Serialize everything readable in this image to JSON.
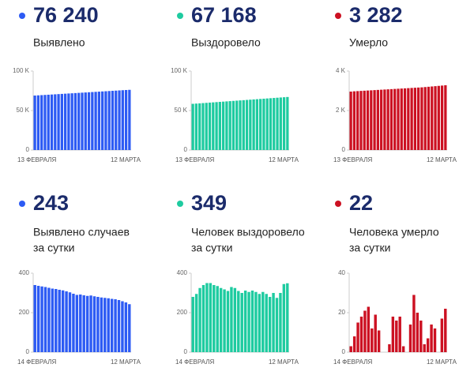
{
  "chart_data": [
    {
      "type": "bar",
      "title": "76 240",
      "label": [
        "Выявлено"
      ],
      "color": "#2d5bf4",
      "categories": [
        "13 ФЕВРАЛЯ",
        null,
        null,
        null,
        null,
        null,
        null,
        null,
        null,
        null,
        null,
        null,
        null,
        null,
        null,
        null,
        null,
        null,
        null,
        null,
        null,
        null,
        null,
        null,
        null,
        null,
        null,
        null,
        "12 МАРТА"
      ],
      "values": [
        69000,
        69260,
        69520,
        69780,
        70040,
        70300,
        70560,
        70820,
        71080,
        71340,
        71600,
        71860,
        72120,
        72380,
        72640,
        72900,
        73160,
        73420,
        73680,
        73940,
        74200,
        74460,
        74720,
        74980,
        75240,
        75500,
        75760,
        76000,
        76240
      ],
      "ylim": [
        0,
        100000
      ],
      "yticks": [
        0,
        {
          "value": 50000,
          "label": "50 K"
        },
        {
          "value": 100000,
          "label": "100 K"
        }
      ]
    },
    {
      "type": "bar",
      "title": "67 168",
      "label": [
        "Выздоровело"
      ],
      "color": "#1ecba0",
      "categories": [
        "13 ФЕВРАЛЯ",
        null,
        null,
        null,
        null,
        null,
        null,
        null,
        null,
        null,
        null,
        null,
        null,
        null,
        null,
        null,
        null,
        null,
        null,
        null,
        null,
        null,
        null,
        null,
        null,
        null,
        null,
        null,
        "12 МАРТА"
      ],
      "values": [
        58500,
        58810,
        59120,
        59430,
        59740,
        60050,
        60360,
        60670,
        60980,
        61290,
        61600,
        61910,
        62220,
        62530,
        62840,
        63150,
        63460,
        63770,
        64080,
        64390,
        64700,
        65010,
        65320,
        65630,
        65940,
        66250,
        66560,
        66860,
        67168
      ],
      "ylim": [
        0,
        100000
      ],
      "yticks": [
        0,
        {
          "value": 50000,
          "label": "50 K"
        },
        {
          "value": 100000,
          "label": "100 K"
        }
      ]
    },
    {
      "type": "bar",
      "title": "3 282",
      "label": [
        "Умерло"
      ],
      "color": "#cc1122",
      "categories": [
        "13 ФЕВРАЛЯ",
        null,
        null,
        null,
        null,
        null,
        null,
        null,
        null,
        null,
        null,
        null,
        null,
        null,
        null,
        null,
        null,
        null,
        null,
        null,
        null,
        null,
        null,
        null,
        null,
        null,
        null,
        null,
        "12 МАРТА"
      ],
      "values": [
        2960,
        2975,
        2985,
        2995,
        3005,
        3015,
        3025,
        3035,
        3045,
        3055,
        3065,
        3075,
        3085,
        3095,
        3105,
        3115,
        3125,
        3135,
        3145,
        3155,
        3165,
        3175,
        3190,
        3205,
        3220,
        3235,
        3250,
        3265,
        3282
      ],
      "ylim": [
        0,
        4000
      ],
      "yticks": [
        0,
        {
          "value": 2000,
          "label": "2 K"
        },
        {
          "value": 4000,
          "label": "4 K"
        }
      ]
    },
    {
      "type": "bar",
      "title": "243",
      "label": [
        "Выявлено случаев",
        "за сутки"
      ],
      "color": "#2d5bf4",
      "categories": [
        "14 ФЕВРАЛЯ",
        null,
        null,
        null,
        null,
        null,
        null,
        null,
        null,
        null,
        null,
        null,
        null,
        null,
        null,
        null,
        null,
        null,
        null,
        null,
        null,
        null,
        null,
        null,
        null,
        null,
        null,
        "12 МАРТА"
      ],
      "values": [
        340,
        336,
        333,
        330,
        326,
        322,
        320,
        316,
        313,
        308,
        303,
        296,
        290,
        292,
        288,
        285,
        287,
        283,
        280,
        277,
        275,
        273,
        270,
        268,
        264,
        258,
        252,
        243
      ],
      "ylim": [
        0,
        400
      ],
      "yticks": [
        0,
        200,
        400
      ]
    },
    {
      "type": "bar",
      "title": "349",
      "label": [
        "Человек выздоровело",
        "за сутки"
      ],
      "color": "#1ecba0",
      "categories": [
        "14 ФЕВРАЛЯ",
        null,
        null,
        null,
        null,
        null,
        null,
        null,
        null,
        null,
        null,
        null,
        null,
        null,
        null,
        null,
        null,
        null,
        null,
        null,
        null,
        null,
        null,
        null,
        null,
        null,
        null,
        "12 МАРТА"
      ],
      "values": [
        280,
        295,
        325,
        340,
        350,
        350,
        340,
        335,
        325,
        318,
        310,
        330,
        325,
        310,
        300,
        312,
        305,
        312,
        305,
        295,
        305,
        295,
        280,
        300,
        275,
        300,
        345,
        349
      ],
      "ylim": [
        0,
        400
      ],
      "yticks": [
        0,
        200,
        400
      ]
    },
    {
      "type": "bar",
      "title": "22",
      "label": [
        "Человека умерло",
        "за сутки"
      ],
      "color": "#cc1122",
      "categories": [
        "14 ФЕВРАЛЯ",
        null,
        null,
        null,
        null,
        null,
        null,
        null,
        null,
        null,
        null,
        null,
        null,
        null,
        null,
        null,
        null,
        null,
        null,
        null,
        null,
        null,
        null,
        null,
        null,
        null,
        null,
        "12 МАРТА"
      ],
      "values": [
        3,
        8,
        15,
        18,
        21,
        23,
        12,
        19,
        11,
        0,
        0,
        4,
        18,
        16,
        18,
        3,
        0,
        14,
        29,
        20,
        16,
        4,
        7,
        14,
        12,
        0,
        17,
        22
      ],
      "ylim": [
        0,
        40
      ],
      "yticks": [
        0,
        20,
        40
      ]
    }
  ]
}
